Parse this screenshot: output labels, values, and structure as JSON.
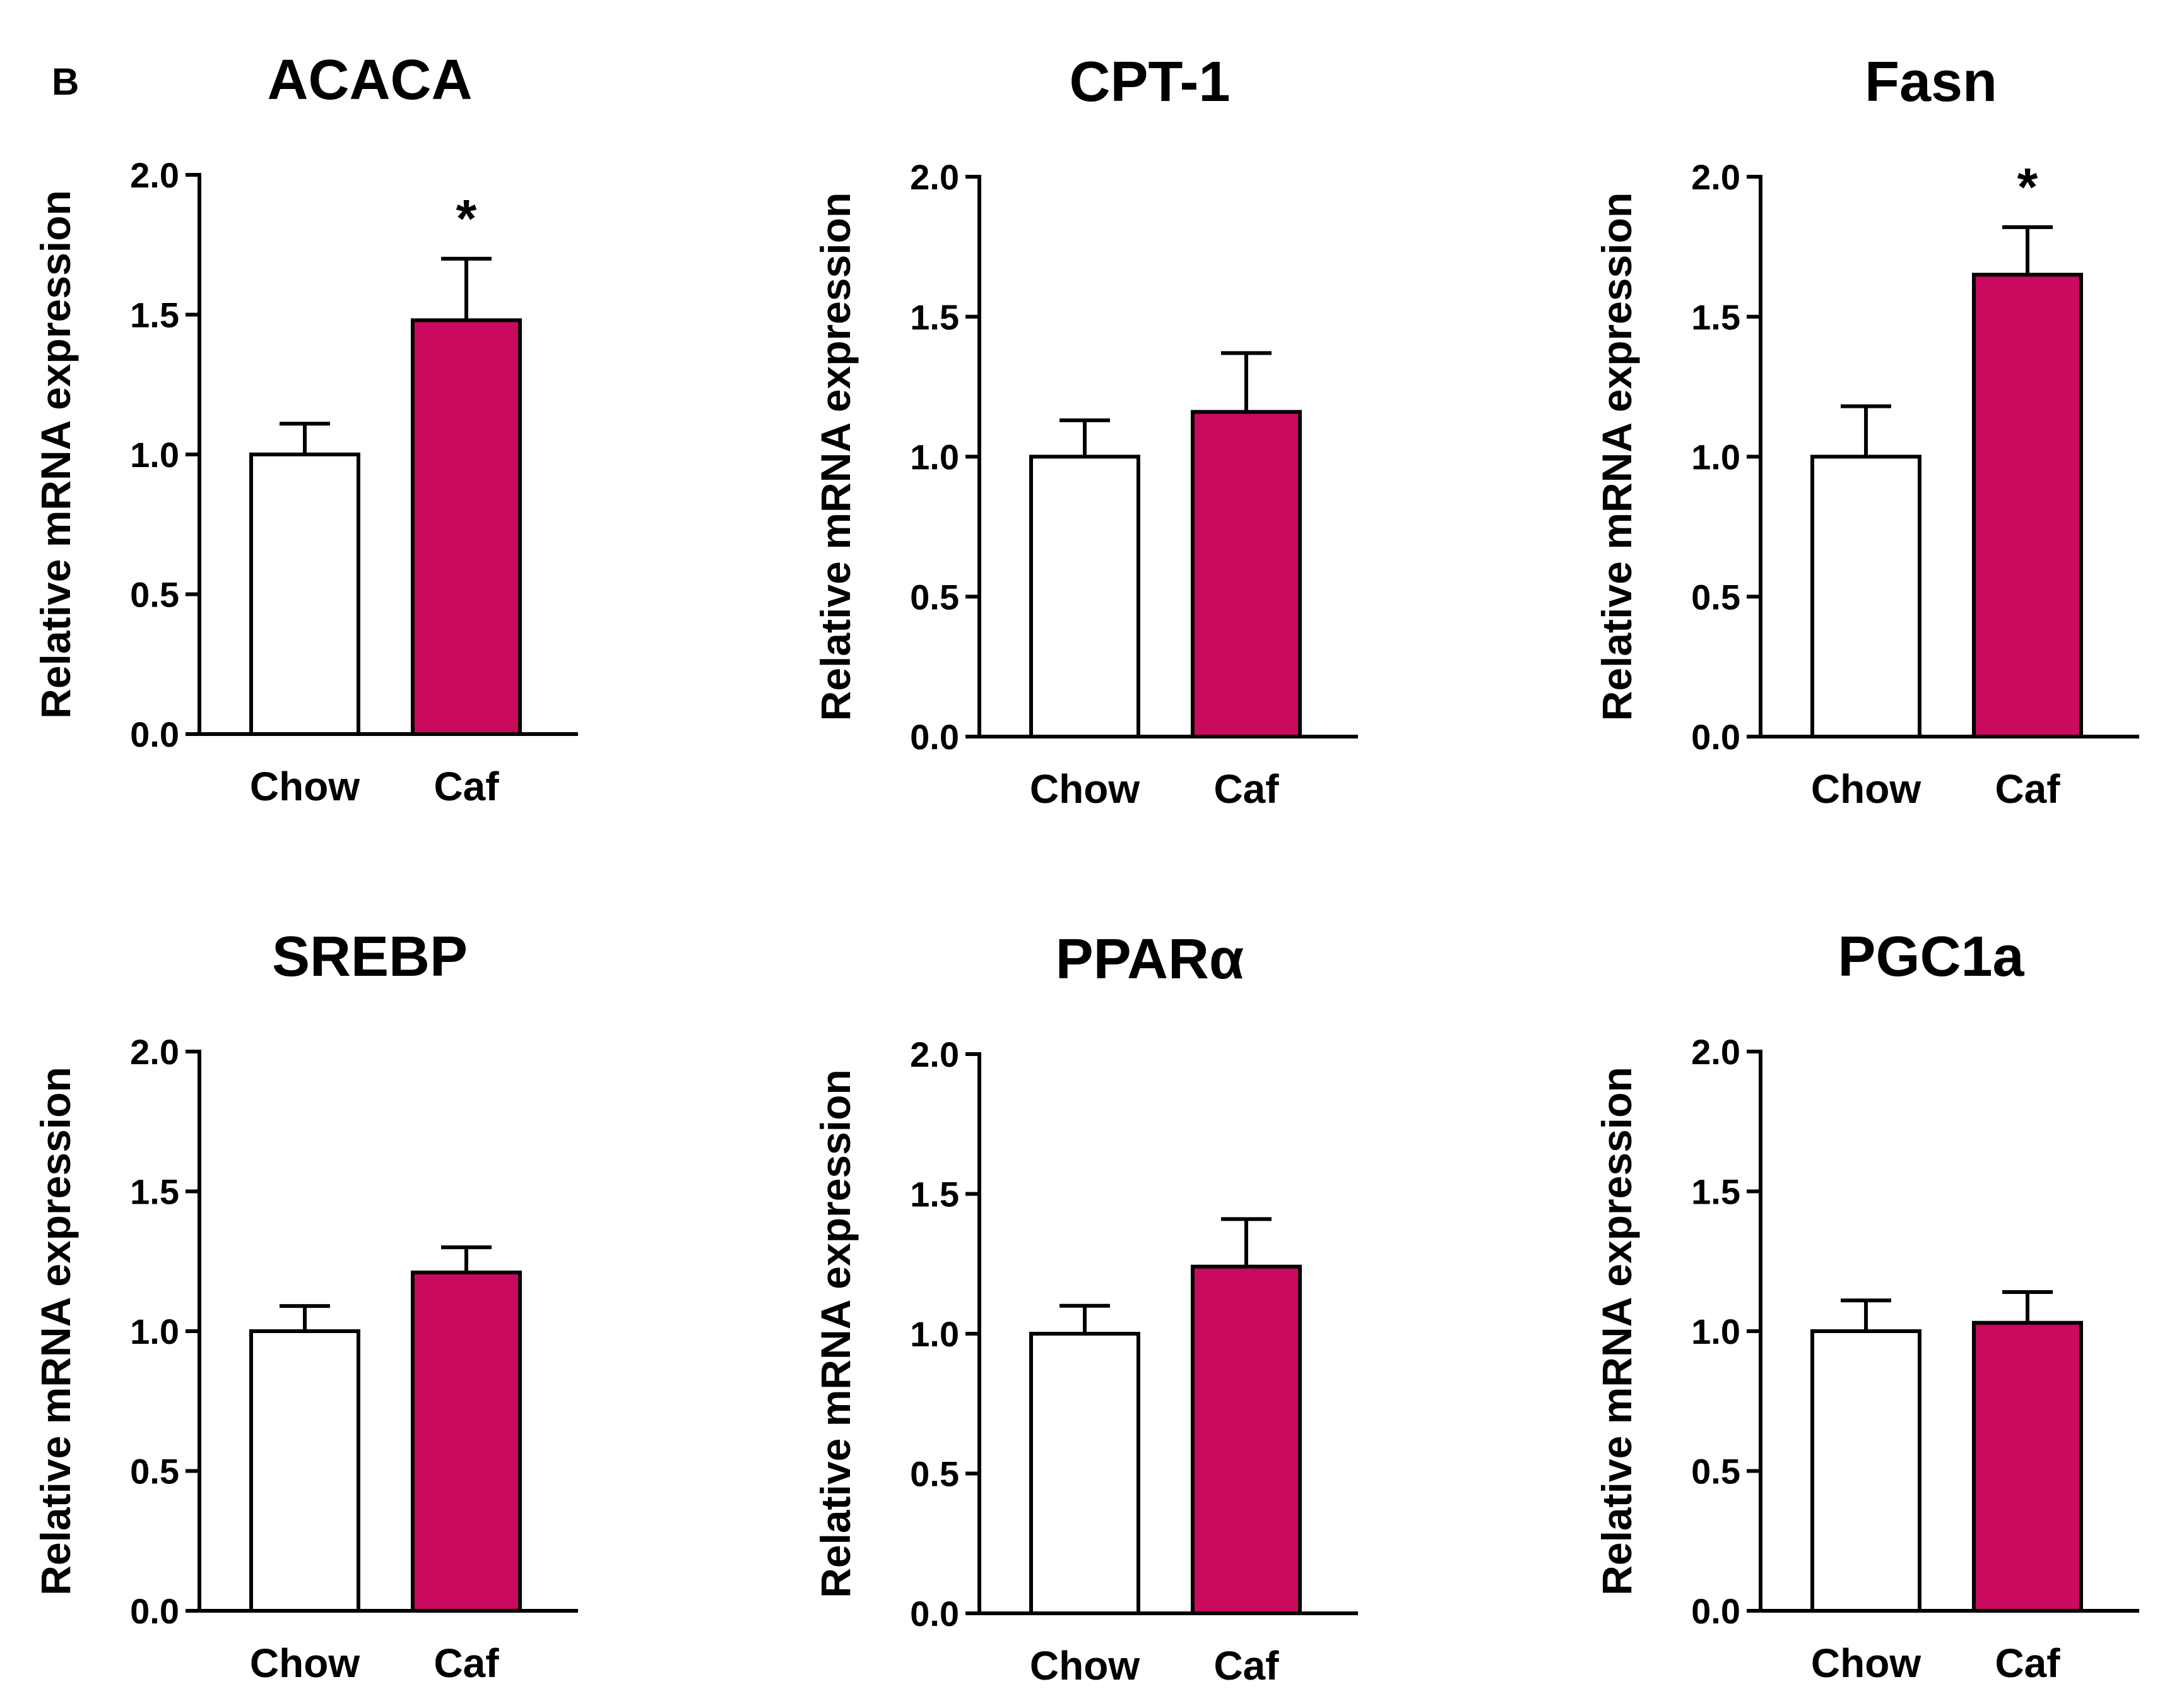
{
  "panel_label": "B",
  "colors": {
    "chow_fill": "#ffffff",
    "caf_fill": "#c90a5e",
    "stroke": "#000000"
  },
  "chart_data": [
    {
      "type": "bar",
      "title": "ACACA",
      "ylabel": "Relative mRNA expression",
      "ylim": [
        0,
        2.0
      ],
      "yticks": [
        "0.0",
        "0.5",
        "1.0",
        "1.5",
        "2.0"
      ],
      "categories": [
        "Chow",
        "Caf"
      ],
      "values": [
        1.0,
        1.48
      ],
      "errors": [
        0.11,
        0.22
      ],
      "significance": [
        "",
        "*"
      ]
    },
    {
      "type": "bar",
      "title": "CPT-1",
      "ylabel": "Relative mRNA expression",
      "ylim": [
        0,
        2.0
      ],
      "yticks": [
        "0.0",
        "0.5",
        "1.0",
        "1.5",
        "2.0"
      ],
      "categories": [
        "Chow",
        "Caf"
      ],
      "values": [
        1.0,
        1.16
      ],
      "errors": [
        0.13,
        0.21
      ],
      "significance": [
        "",
        ""
      ]
    },
    {
      "type": "bar",
      "title": "Fasn",
      "ylabel": "Relative mRNA expression",
      "ylim": [
        0,
        2.0
      ],
      "yticks": [
        "0.0",
        "0.5",
        "1.0",
        "1.5",
        "2.0"
      ],
      "categories": [
        "Chow",
        "Caf"
      ],
      "values": [
        1.0,
        1.65
      ],
      "errors": [
        0.18,
        0.17
      ],
      "significance": [
        "",
        "*"
      ]
    },
    {
      "type": "bar",
      "title": "SREBP",
      "ylabel": "Relative mRNA expression",
      "ylim": [
        0,
        2.0
      ],
      "yticks": [
        "0.0",
        "0.5",
        "1.0",
        "1.5",
        "2.0"
      ],
      "categories": [
        "Chow",
        "Caf"
      ],
      "values": [
        1.0,
        1.21
      ],
      "errors": [
        0.09,
        0.09
      ],
      "significance": [
        "",
        ""
      ]
    },
    {
      "type": "bar",
      "title": "PPARα",
      "ylabel": "Relative mRNA expression",
      "ylim": [
        0,
        2.0
      ],
      "yticks": [
        "0.0",
        "0.5",
        "1.0",
        "1.5",
        "2.0"
      ],
      "categories": [
        "Chow",
        "Caf"
      ],
      "values": [
        1.0,
        1.24
      ],
      "errors": [
        0.1,
        0.17
      ],
      "significance": [
        "",
        ""
      ]
    },
    {
      "type": "bar",
      "title": "PGC1a",
      "ylabel": "Relative mRNA expression",
      "ylim": [
        0,
        2.0
      ],
      "yticks": [
        "0.0",
        "0.5",
        "1.0",
        "1.5",
        "2.0"
      ],
      "categories": [
        "Chow",
        "Caf"
      ],
      "values": [
        1.0,
        1.03
      ],
      "errors": [
        0.11,
        0.11
      ],
      "significance": [
        "",
        ""
      ]
    }
  ]
}
